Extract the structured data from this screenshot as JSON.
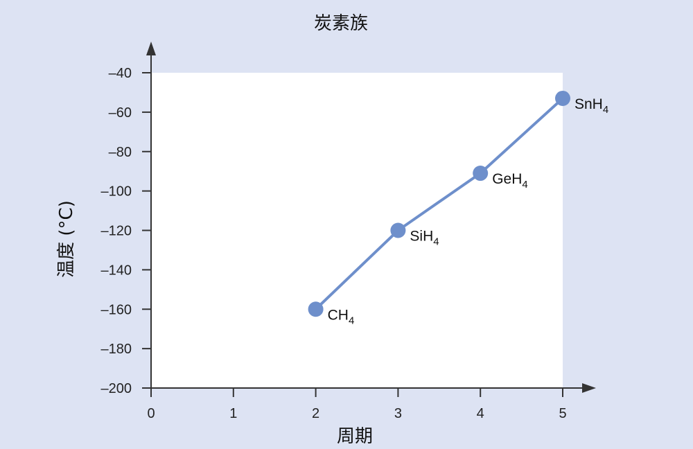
{
  "chart_data": {
    "type": "line",
    "title": "炭素族",
    "xlabel": "周期",
    "ylabel": "温度 (°C)",
    "xlim": [
      0,
      5
    ],
    "ylim": [
      -200,
      -40
    ],
    "x_ticks": [
      0,
      1,
      2,
      3,
      4,
      5
    ],
    "y_ticks": [
      -40,
      -60,
      -80,
      -100,
      -120,
      -140,
      -160,
      -180,
      -200
    ],
    "y_tick_labels": [
      "–40",
      "–60",
      "–80",
      "–100",
      "–120",
      "–140",
      "–160",
      "–180",
      "–200"
    ],
    "grid": false,
    "series": [
      {
        "points": [
          {
            "x": 2,
            "y": -160,
            "label": "CH",
            "sub": "4"
          },
          {
            "x": 3,
            "y": -120,
            "label": "SiH",
            "sub": "4"
          },
          {
            "x": 4,
            "y": -91,
            "label": "GeH",
            "sub": "4"
          },
          {
            "x": 5,
            "y": -53,
            "label": "SnH",
            "sub": "4"
          }
        ]
      }
    ],
    "colors": {
      "background": "#dde3f3",
      "plot_area": "#ffffff",
      "series": "#6e8fcb",
      "axis": "#333333"
    }
  }
}
